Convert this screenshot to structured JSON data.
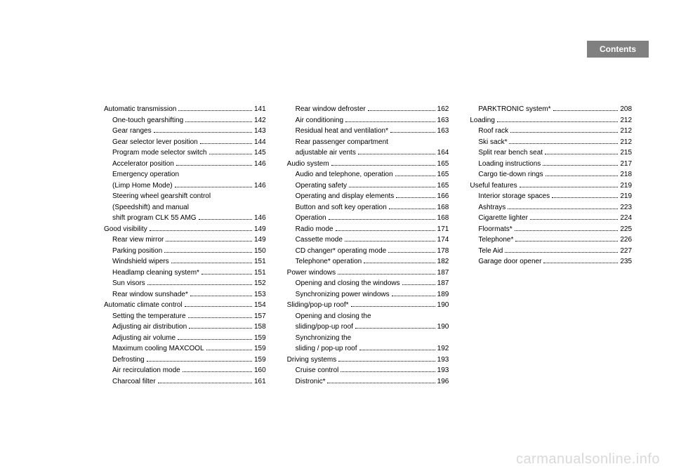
{
  "header": {
    "title": "Contents"
  },
  "watermark": "carmanualsonline.info",
  "colors": {
    "tab_bg": "#808080",
    "tab_text": "#ffffff",
    "body_text": "#000000",
    "watermark": "#d9d9d9",
    "page_bg": "#ffffff"
  },
  "typography": {
    "body_fontsize": 10,
    "header_fontsize": 12,
    "watermark_fontsize": 20
  },
  "columns": [
    [
      {
        "label": "Automatic transmission",
        "page": "141",
        "indent": 0
      },
      {
        "label": "One-touch gearshifting",
        "page": "142",
        "indent": 1
      },
      {
        "label": "Gear ranges",
        "page": "143",
        "indent": 1
      },
      {
        "label": "Gear selector lever position",
        "page": "144",
        "indent": 1
      },
      {
        "label": "Program mode selector switch",
        "page": "145",
        "indent": 1
      },
      {
        "label": "Accelerator position",
        "page": "146",
        "indent": 1
      },
      {
        "label": "Emergency operation",
        "page": "",
        "indent": 1,
        "cont": true
      },
      {
        "label": "(Limp Home Mode)",
        "page": "146",
        "indent": 1
      },
      {
        "label": "Steering wheel gearshift control",
        "page": "",
        "indent": 1,
        "cont": true
      },
      {
        "label": "(Speedshift) and manual",
        "page": "",
        "indent": 1,
        "cont": true
      },
      {
        "label": "shift program CLK 55 AMG",
        "page": "146",
        "indent": 1
      },
      {
        "label": "Good visibility",
        "page": "149",
        "indent": 0
      },
      {
        "label": "Rear view mirror",
        "page": "149",
        "indent": 1
      },
      {
        "label": "Parking position",
        "page": "150",
        "indent": 1
      },
      {
        "label": "Windshield wipers",
        "page": "151",
        "indent": 1
      },
      {
        "label": "Headlamp cleaning system*",
        "page": "151",
        "indent": 1
      },
      {
        "label": "Sun visors",
        "page": "152",
        "indent": 1
      },
      {
        "label": "Rear window sunshade*",
        "page": "153",
        "indent": 1
      },
      {
        "label": "Automatic climate control",
        "page": "154",
        "indent": 0
      },
      {
        "label": "Setting the temperature",
        "page": "157",
        "indent": 1
      },
      {
        "label": "Adjusting air distribution",
        "page": "158",
        "indent": 1
      },
      {
        "label": "Adjusting air volume",
        "page": "159",
        "indent": 1
      },
      {
        "label": "Maximum cooling MAXCOOL",
        "page": "159",
        "indent": 1
      },
      {
        "label": "Defrosting",
        "page": "159",
        "indent": 1
      },
      {
        "label": "Air recirculation mode",
        "page": "160",
        "indent": 1
      },
      {
        "label": "Charcoal filter",
        "page": "161",
        "indent": 1
      }
    ],
    [
      {
        "label": "Rear window defroster",
        "page": "162",
        "indent": 1
      },
      {
        "label": "Air conditioning",
        "page": "163",
        "indent": 1
      },
      {
        "label": "Residual heat and ventilation*",
        "page": "163",
        "indent": 1
      },
      {
        "label": "Rear passenger compartment",
        "page": "",
        "indent": 1,
        "cont": true
      },
      {
        "label": "adjustable air vents",
        "page": "164",
        "indent": 1
      },
      {
        "label": "Audio system",
        "page": "165",
        "indent": 0
      },
      {
        "label": "Audio and telephone, operation",
        "page": "165",
        "indent": 1
      },
      {
        "label": "Operating safety",
        "page": "165",
        "indent": 1
      },
      {
        "label": "Operating and display elements",
        "page": "166",
        "indent": 1
      },
      {
        "label": "Button and soft key operation",
        "page": "168",
        "indent": 1
      },
      {
        "label": "Operation",
        "page": "168",
        "indent": 1
      },
      {
        "label": "Radio mode",
        "page": "171",
        "indent": 1
      },
      {
        "label": "Cassette mode",
        "page": "174",
        "indent": 1
      },
      {
        "label": "CD changer* operating mode",
        "page": "178",
        "indent": 1
      },
      {
        "label": "Telephone* operation",
        "page": "182",
        "indent": 1
      },
      {
        "label": "Power windows",
        "page": "187",
        "indent": 0
      },
      {
        "label": "Opening and closing the windows",
        "page": "187",
        "indent": 1
      },
      {
        "label": "Synchronizing power windows",
        "page": "189",
        "indent": 1
      },
      {
        "label": "Sliding/pop-up roof*",
        "page": "190",
        "indent": 0
      },
      {
        "label": "Opening and closing the",
        "page": "",
        "indent": 1,
        "cont": true
      },
      {
        "label": "sliding/pop-up roof",
        "page": "190",
        "indent": 1
      },
      {
        "label": "Synchronizing the",
        "page": "",
        "indent": 1,
        "cont": true
      },
      {
        "label": "sliding / pop-up roof",
        "page": "192",
        "indent": 1
      },
      {
        "label": "Driving systems",
        "page": "193",
        "indent": 0
      },
      {
        "label": "Cruise control",
        "page": "193",
        "indent": 1
      },
      {
        "label": "Distronic*",
        "page": "196",
        "indent": 1
      }
    ],
    [
      {
        "label": "PARKTRONIC system*",
        "page": "208",
        "indent": 1
      },
      {
        "label": "Loading",
        "page": "212",
        "indent": 0
      },
      {
        "label": "Roof rack",
        "page": "212",
        "indent": 1
      },
      {
        "label": "Ski sack*",
        "page": "212",
        "indent": 1
      },
      {
        "label": "Split rear bench seat",
        "page": "215",
        "indent": 1
      },
      {
        "label": "Loading instructions",
        "page": "217",
        "indent": 1
      },
      {
        "label": "Cargo tie-down rings",
        "page": "218",
        "indent": 1
      },
      {
        "label": "Useful features",
        "page": "219",
        "indent": 0
      },
      {
        "label": "Interior storage spaces",
        "page": "219",
        "indent": 1
      },
      {
        "label": "Ashtrays",
        "page": "223",
        "indent": 1
      },
      {
        "label": "Cigarette lighter",
        "page": "224",
        "indent": 1
      },
      {
        "label": "Floormats*",
        "page": "225",
        "indent": 1
      },
      {
        "label": "Telephone*",
        "page": "226",
        "indent": 1
      },
      {
        "label": "Tele Aid",
        "page": "227",
        "indent": 1
      },
      {
        "label": "Garage door opener",
        "page": "235",
        "indent": 1
      }
    ]
  ]
}
